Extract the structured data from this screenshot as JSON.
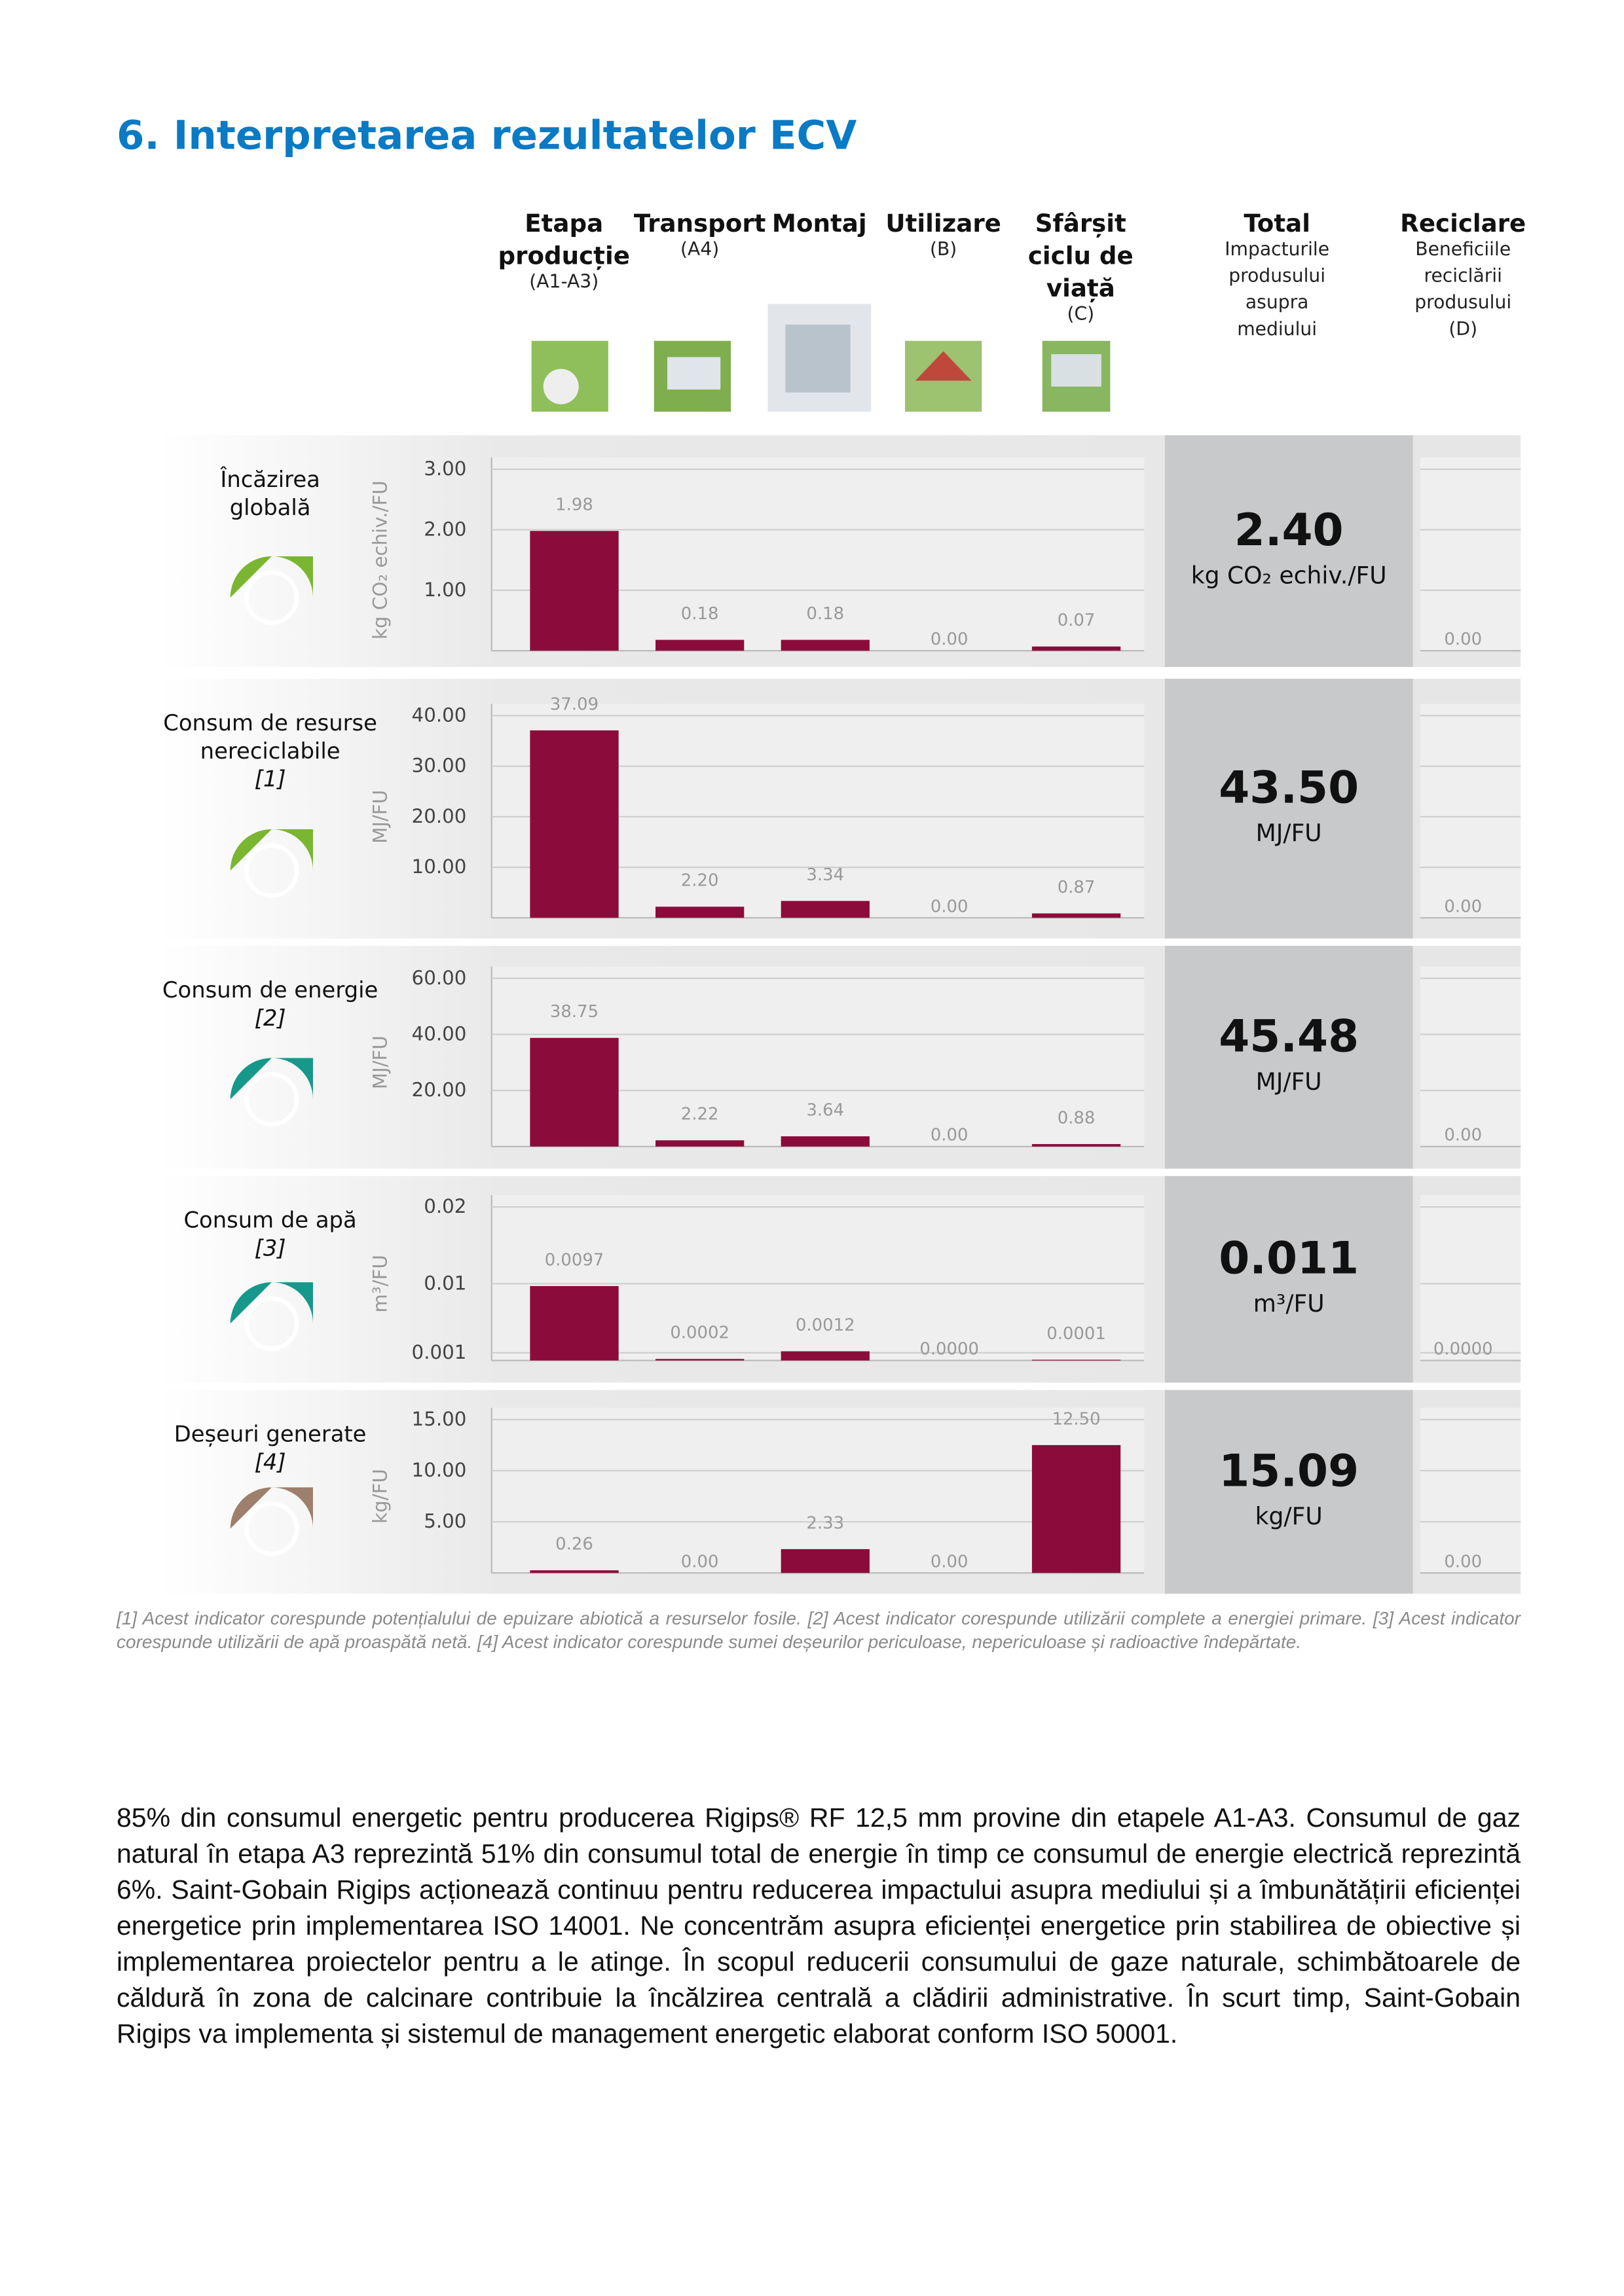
{
  "title": "6. Interpretarea rezultatelor ECV",
  "columns": [
    {
      "name": [
        "Etapa",
        "producție"
      ],
      "note": [
        "(A1-A3)"
      ]
    },
    {
      "name": [
        "Transport"
      ],
      "note": [
        "(A4)"
      ]
    },
    {
      "name": [
        "Montaj"
      ],
      "note": []
    },
    {
      "name": [
        "Utilizare"
      ],
      "note": [
        "(B)"
      ]
    },
    {
      "name": [
        "Sfârșit",
        "ciclu de",
        "viață"
      ],
      "note": [
        "(C)"
      ]
    },
    {
      "name": [
        "Total"
      ],
      "note": [
        "Impacturile",
        "produsului",
        "asupra",
        "mediului"
      ]
    },
    {
      "name": [
        "Reciclare"
      ],
      "note": [
        "Beneficiile",
        "reciclării",
        "produsului",
        "(D)"
      ]
    }
  ],
  "chart_data": [
    {
      "type": "bar",
      "title": [
        "Încăzirea",
        "globală"
      ],
      "note": "",
      "ylabel": "kg CO₂ echiv./FU",
      "values": [
        1.98,
        0.18,
        0.18,
        0,
        0.07,
        0
      ],
      "value_labels": [
        "1.98",
        "0.18",
        "0.18",
        "0.00",
        "0.07",
        "0.00"
      ],
      "ylim": [
        0,
        3
      ],
      "yticks": [
        {
          "value": 1,
          "label": "1.00"
        },
        {
          "value": 2,
          "label": "2.00"
        },
        {
          "value": 3,
          "label": "3.00"
        }
      ],
      "total": "2.40",
      "total_unit": "kg CO₂ echiv./FU",
      "color": "#8b0c3a"
    },
    {
      "type": "bar",
      "title": [
        "Consum de resurse",
        "nereciclabile"
      ],
      "note": "[1]",
      "ylabel": "MJ/FU",
      "values": [
        37.09,
        2.2,
        3.34,
        0,
        0.87,
        0
      ],
      "value_labels": [
        "37.09",
        "2.20",
        "3.34",
        "0.00",
        "0.87",
        "0.00"
      ],
      "ylim": [
        0,
        40
      ],
      "yticks": [
        {
          "value": 10,
          "label": "10.00"
        },
        {
          "value": 20,
          "label": "20.00"
        },
        {
          "value": 30,
          "label": "30.00"
        },
        {
          "value": 40,
          "label": "40.00"
        }
      ],
      "total": "43.50",
      "total_unit": "MJ/FU",
      "color": "#8b0c3a"
    },
    {
      "type": "bar",
      "title": [
        "Consum de energie"
      ],
      "note": "[2]",
      "ylabel": "MJ/FU",
      "values": [
        38.75,
        2.22,
        3.64,
        0,
        0.88,
        0
      ],
      "value_labels": [
        "38.75",
        "2.22",
        "3.64",
        "0.00",
        "0.88",
        "0.00"
      ],
      "ylim": [
        0,
        60
      ],
      "yticks": [
        {
          "value": 20,
          "label": "20.00"
        },
        {
          "value": 40,
          "label": "40.00"
        },
        {
          "value": 60,
          "label": "60.00"
        }
      ],
      "total": "45.48",
      "total_unit": "MJ/FU",
      "color": "#8b0c3a"
    },
    {
      "type": "bar",
      "title": [
        "Consum de apă"
      ],
      "note": "[3]",
      "ylabel": "m³/FU",
      "values": [
        0.0097,
        0.0002,
        0.0012,
        0,
        0.0001,
        0
      ],
      "value_labels": [
        "0.0097",
        "0.0002",
        "0.0012",
        "0.0000",
        "0.0001",
        "0.0000"
      ],
      "ylim": [
        0,
        0.02
      ],
      "yticks": [
        0.001,
        0.01,
        0.02
      ],
      "total": "0.011",
      "total_unit": "m³/FU",
      "color": "#8b0c3a"
    },
    {
      "type": "bar",
      "title": [
        "Deșeuri generate"
      ],
      "note": "[4]",
      "ylabel": "kg/FU",
      "values": [
        0.26,
        0,
        2.33,
        0,
        12.5,
        0
      ],
      "value_labels": [
        "0.26",
        "0.00",
        "2.33",
        "0.00",
        "12.50",
        "0.00"
      ],
      "ylim": [
        0,
        15
      ],
      "yticks": [
        {
          "value": 5,
          "label": "5.00"
        },
        {
          "value": 10,
          "label": "10.00"
        },
        {
          "value": 15,
          "label": "15.00"
        }
      ],
      "total": "15.09",
      "total_unit": "kg/FU",
      "color": "#8b0c3a"
    }
  ],
  "footnote": "[1] Acest indicator corespunde potențialului de epuizare abiotică a resurselor fosile. [2] Acest indicator corespunde utilizării complete a energiei primare. [3] Acest indicator corespunde utilizării de apă proaspătă netă. [4] Acest indicator corespunde sumei deșeurilor periculoase, nepericuloase și radioactive îndepărtate.",
  "paragraph": "85% din consumul energetic pentru producerea Rigips® RF 12,5 mm provine din etapele A1-A3. Consumul de gaz natural în etapa A3 reprezintă 51% din consumul total de energie în timp ce consumul de energie electrică reprezintă 6%. Saint-Gobain Rigips acționează continuu pentru reducerea impactului asupra mediului și a îmbunătățirii eficienței energetice prin implementarea ISO 14001. Ne concentrăm asupra eficienței energetice prin stabilirea de obiective și implementarea proiectelor pentru a le atinge. În scopul reducerii consumului de gaze naturale, schimbătoarele de căldură în zona de calcinare contribuie la încălzirea centrală a clădirii administrative. În scurt timp, Saint-Gobain Rigips va implementa și sistemul de management energetic elaborat conform  ISO 50001."
}
